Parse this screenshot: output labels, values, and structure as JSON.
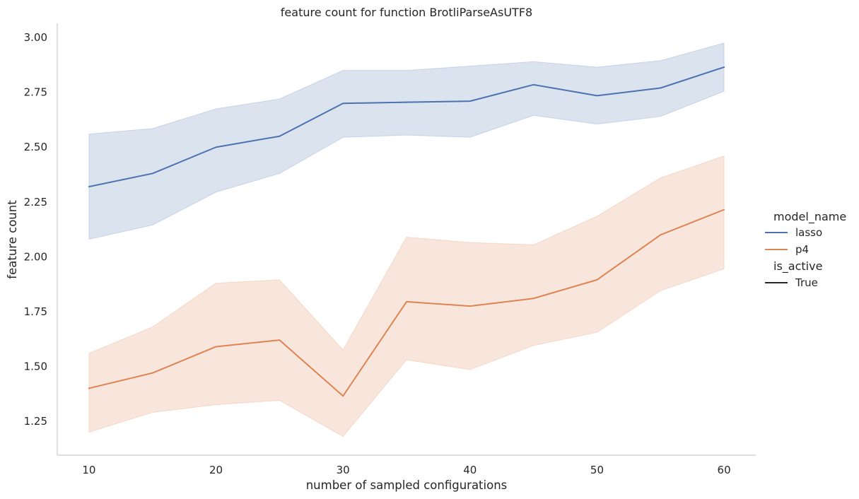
{
  "chart_data": {
    "type": "line",
    "title": "feature count for function BrotliParseAsUTF8",
    "xlabel": "number of sampled configurations",
    "ylabel": "feature count",
    "x": [
      10,
      15,
      20,
      25,
      30,
      35,
      40,
      45,
      50,
      55,
      60
    ],
    "xticks": [
      10,
      20,
      30,
      40,
      50,
      60
    ],
    "yticks": [
      1.25,
      1.5,
      1.75,
      2.0,
      2.25,
      2.5,
      2.75,
      3.0
    ],
    "ytick_labels": [
      "1.25",
      "1.50",
      "1.75",
      "2.00",
      "2.25",
      "2.50",
      "2.75",
      "3.00"
    ],
    "xlim": [
      7.5,
      62.5
    ],
    "ylim": [
      1.095,
      3.065
    ],
    "grid": false,
    "legend_placement": "right",
    "series": [
      {
        "name": "lasso",
        "color": "#4c72b0",
        "values": [
          2.32,
          2.38,
          2.5,
          2.55,
          2.7,
          2.705,
          2.71,
          2.785,
          2.735,
          2.77,
          2.865
        ],
        "ci_low": [
          2.08,
          2.145,
          2.295,
          2.38,
          2.545,
          2.555,
          2.545,
          2.645,
          2.605,
          2.64,
          2.755
        ],
        "ci_high": [
          2.56,
          2.585,
          2.675,
          2.72,
          2.85,
          2.85,
          2.87,
          2.89,
          2.865,
          2.895,
          2.975
        ]
      },
      {
        "name": "p4",
        "color": "#dd8452",
        "values": [
          1.4,
          1.47,
          1.59,
          1.62,
          1.365,
          1.795,
          1.775,
          1.81,
          1.895,
          2.1,
          2.215
        ],
        "ci_low": [
          1.2,
          1.29,
          1.325,
          1.345,
          1.18,
          1.53,
          1.485,
          1.595,
          1.655,
          1.845,
          1.945
        ],
        "ci_high": [
          1.56,
          1.68,
          1.88,
          1.895,
          1.575,
          2.09,
          2.065,
          2.055,
          2.185,
          2.36,
          2.46
        ]
      }
    ],
    "legend": {
      "hue_title": "model_name",
      "style_title": "is_active",
      "style_entries": [
        {
          "label": "True",
          "color": "#262626"
        }
      ]
    }
  }
}
